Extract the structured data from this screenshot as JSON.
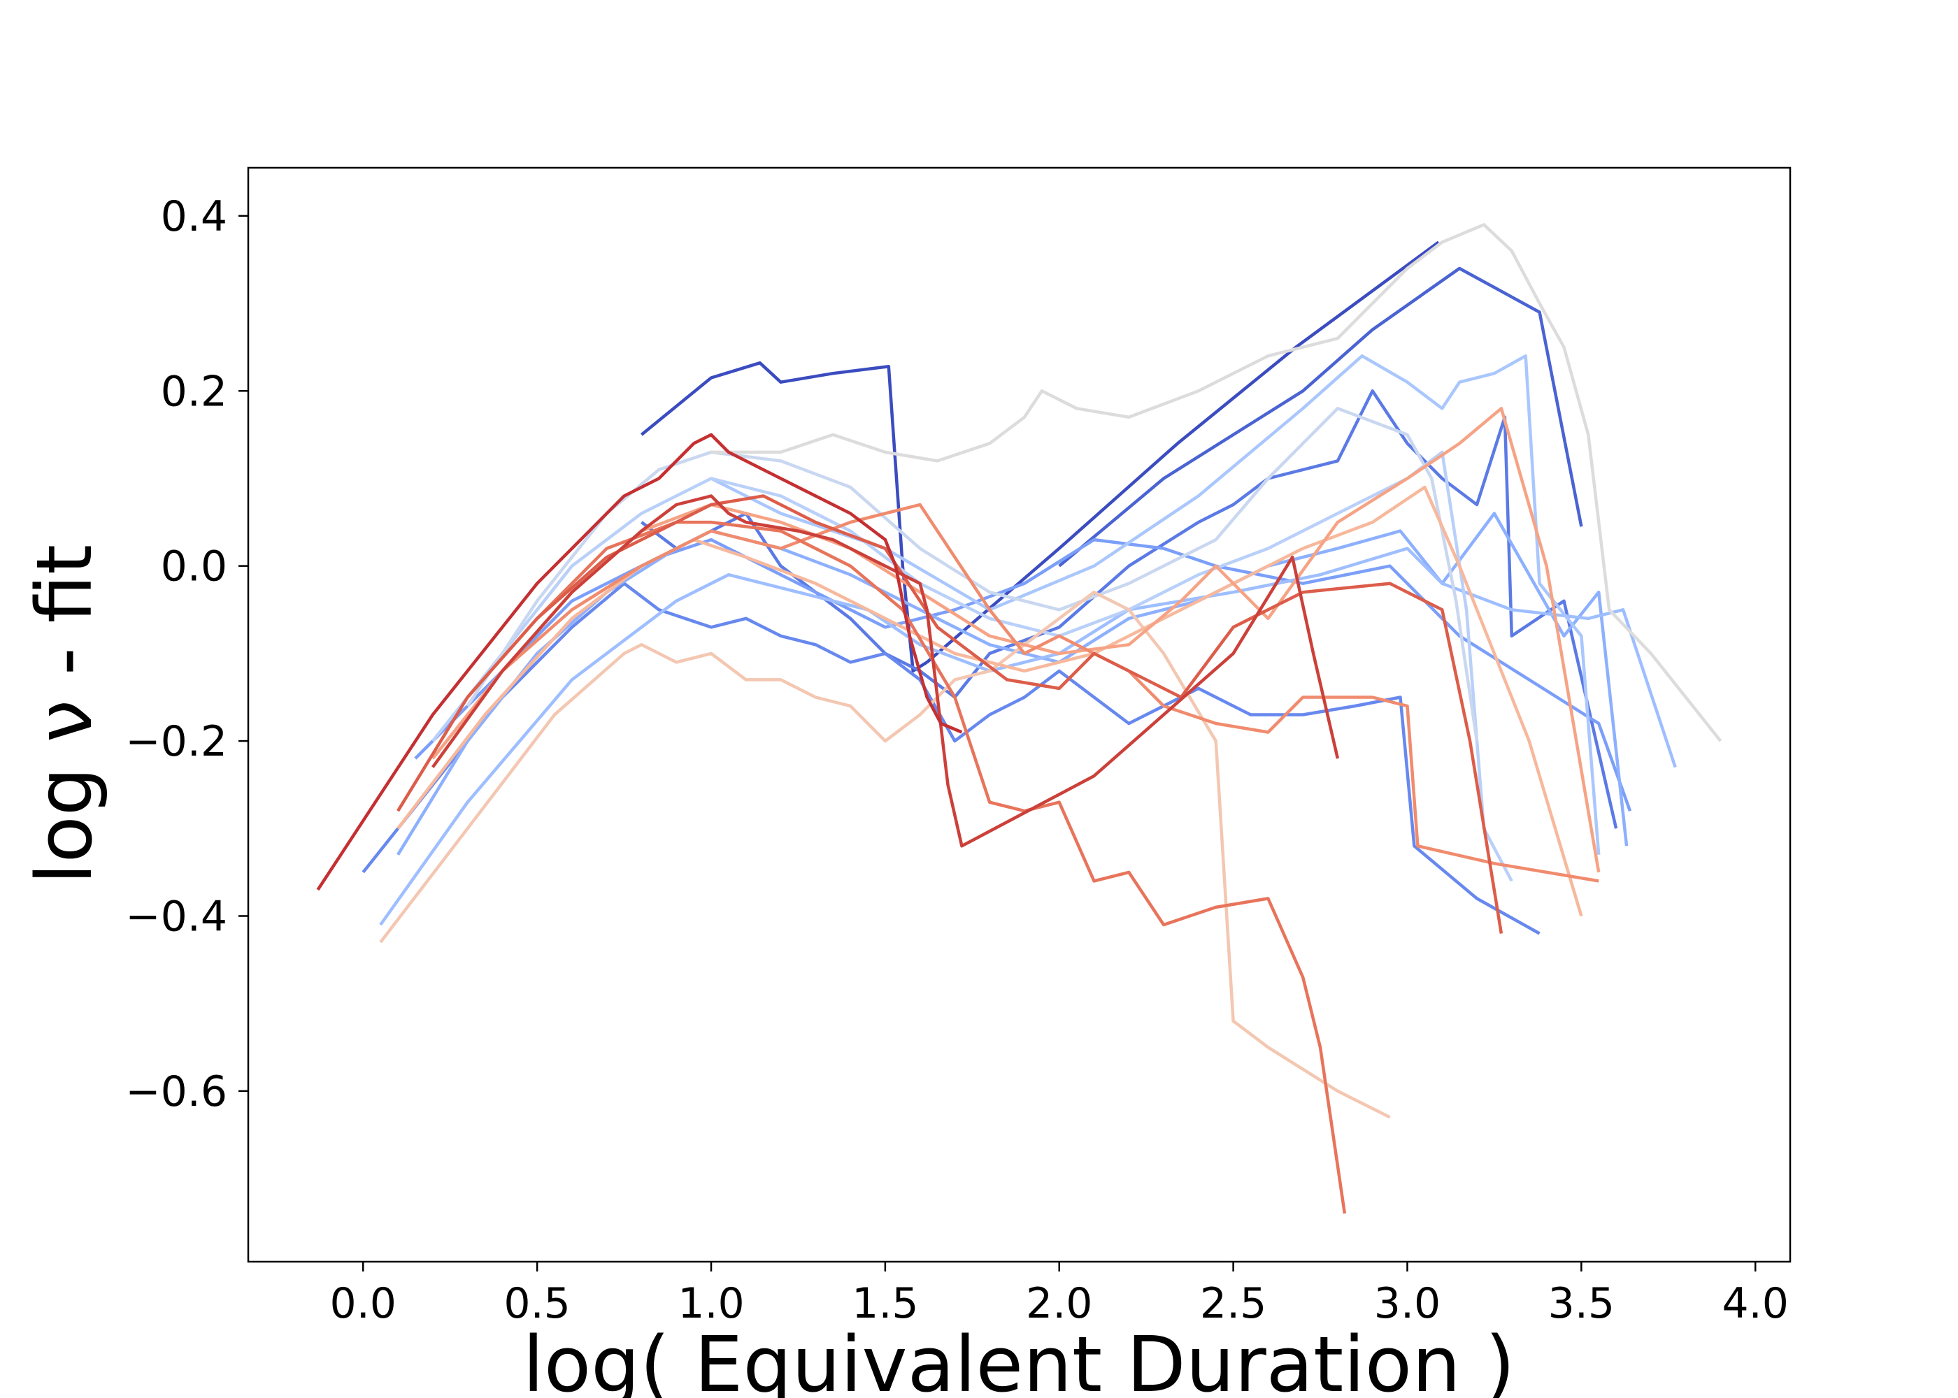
{
  "chart_data": {
    "type": "line",
    "title": "",
    "xlabel": "log( Equivalent Duration )",
    "ylabel": "log  ν  - fit",
    "xlim": [
      -0.33,
      4.1
    ],
    "ylim": [
      -0.795,
      0.455
    ],
    "xticks": [
      0.0,
      0.5,
      1.0,
      1.5,
      2.0,
      2.5,
      3.0,
      3.5,
      4.0
    ],
    "xtick_labels": [
      "0.0",
      "0.5",
      "1.0",
      "1.5",
      "2.0",
      "2.5",
      "3.0",
      "3.5",
      "4.0"
    ],
    "yticks": [
      0.4,
      0.2,
      0.0,
      -0.2,
      -0.4,
      -0.6
    ],
    "ytick_labels": [
      "0.4",
      "0.2",
      "0.0",
      "−0.2",
      "−0.4",
      "−0.6"
    ],
    "grid": false,
    "legend": "none",
    "series": [
      {
        "color": "#3b4cc0",
        "x": [
          0.8,
          1.0,
          1.14,
          1.2,
          1.35,
          1.51,
          1.55,
          1.58,
          1.62
        ],
        "y": [
          0.15,
          0.215,
          0.232,
          0.21,
          0.22,
          0.228,
          0.0,
          -0.12,
          -0.11
        ]
      },
      {
        "color": "#3b4cc0",
        "x": [
          1.62,
          2.0,
          2.34,
          2.68,
          3.09
        ],
        "y": [
          -0.11,
          0.02,
          0.14,
          0.25,
          0.37
        ]
      },
      {
        "color": "#4a63d3",
        "x": [
          2.0,
          2.3,
          2.7,
          2.9,
          3.15,
          3.38,
          3.5
        ],
        "y": [
          0.0,
          0.1,
          0.2,
          0.27,
          0.34,
          0.29,
          0.045
        ]
      },
      {
        "color": "#5b7ae5",
        "x": [
          0.8,
          0.9,
          1.0,
          1.1,
          1.2,
          1.3,
          1.4,
          1.5,
          1.6,
          1.7,
          1.8,
          2.0,
          2.2,
          2.4,
          2.5,
          2.6,
          2.8,
          2.9,
          3.0,
          3.1,
          3.2,
          3.28,
          3.3,
          3.45,
          3.6
        ],
        "y": [
          0.05,
          0.02,
          0.04,
          0.06,
          0.0,
          -0.03,
          -0.06,
          -0.1,
          -0.12,
          -0.15,
          -0.1,
          -0.07,
          0.0,
          0.05,
          0.07,
          0.1,
          0.12,
          0.2,
          0.14,
          0.1,
          0.07,
          0.17,
          -0.08,
          -0.04,
          -0.3
        ]
      },
      {
        "color": "#6788ee",
        "x": [
          0.0,
          0.2,
          0.4,
          0.6,
          0.75,
          0.85,
          1.0,
          1.1,
          1.2,
          1.3,
          1.4,
          1.5,
          1.6,
          1.7,
          1.8,
          1.9,
          2.0,
          2.2,
          2.4,
          2.55,
          2.7,
          2.85,
          2.98,
          3.02,
          3.2,
          3.38
        ],
        "y": [
          -0.35,
          -0.25,
          -0.15,
          -0.07,
          -0.02,
          -0.05,
          -0.07,
          -0.06,
          -0.08,
          -0.09,
          -0.11,
          -0.1,
          -0.13,
          -0.2,
          -0.17,
          -0.15,
          -0.12,
          -0.18,
          -0.14,
          -0.17,
          -0.17,
          -0.16,
          -0.15,
          -0.32,
          -0.38,
          -0.42
        ]
      },
      {
        "color": "#7b9ff9",
        "x": [
          0.15,
          0.4,
          0.6,
          0.85,
          1.0,
          1.2,
          1.35,
          1.5,
          1.7,
          1.9,
          2.1,
          2.3,
          2.45,
          2.7,
          2.95,
          3.15,
          3.35,
          3.55,
          3.64
        ],
        "y": [
          -0.22,
          -0.12,
          -0.04,
          0.01,
          0.03,
          -0.01,
          -0.04,
          -0.07,
          -0.05,
          -0.02,
          0.03,
          0.02,
          0.0,
          -0.02,
          0.0,
          -0.08,
          -0.13,
          -0.18,
          -0.28
        ]
      },
      {
        "color": "#8db0fe",
        "x": [
          0.1,
          0.3,
          0.5,
          0.7,
          0.9,
          1.0,
          1.2,
          1.4,
          1.6,
          1.8,
          2.0,
          2.2,
          2.4,
          2.6,
          2.8,
          2.98,
          3.1,
          3.25,
          3.45,
          3.55,
          3.63
        ],
        "y": [
          -0.33,
          -0.2,
          -0.1,
          -0.03,
          0.02,
          0.04,
          0.02,
          -0.01,
          -0.05,
          -0.09,
          -0.11,
          -0.06,
          -0.04,
          0.0,
          0.02,
          0.04,
          -0.02,
          0.06,
          -0.08,
          -0.03,
          -0.32
        ]
      },
      {
        "color": "#9ebeff",
        "x": [
          0.05,
          0.3,
          0.6,
          0.9,
          1.05,
          1.25,
          1.45,
          1.6,
          1.8,
          2.0,
          2.2,
          2.5,
          2.75,
          3.0,
          3.1,
          3.3,
          3.52,
          3.62,
          3.77
        ],
        "y": [
          -0.41,
          -0.27,
          -0.13,
          -0.04,
          -0.01,
          -0.03,
          -0.05,
          -0.09,
          -0.12,
          -0.1,
          -0.05,
          -0.03,
          -0.01,
          0.02,
          -0.02,
          -0.05,
          -0.06,
          -0.05,
          -0.23
        ]
      },
      {
        "color": "#aac7fd",
        "x": [
          1.0,
          1.2,
          1.5,
          1.8,
          2.1,
          2.4,
          2.7,
          2.87,
          3.0,
          3.1,
          3.15,
          3.25,
          3.34,
          3.38,
          3.5,
          3.55
        ],
        "y": [
          0.1,
          0.06,
          0.02,
          -0.05,
          0.0,
          0.08,
          0.18,
          0.24,
          0.21,
          0.18,
          0.21,
          0.22,
          0.24,
          -0.02,
          -0.08,
          -0.33
        ]
      },
      {
        "color": "#b9d0f9",
        "x": [
          0.2,
          0.4,
          0.6,
          0.8,
          1.0,
          1.2,
          1.4,
          1.6,
          1.8,
          2.0,
          2.2,
          2.4,
          2.6,
          2.8,
          3.0,
          3.1,
          3.17,
          3.22,
          3.3
        ],
        "y": [
          -0.2,
          -0.1,
          0.0,
          0.06,
          0.1,
          0.08,
          0.04,
          -0.02,
          -0.06,
          -0.08,
          -0.05,
          -0.01,
          0.02,
          0.06,
          0.1,
          0.13,
          -0.05,
          -0.3,
          -0.36
        ]
      },
      {
        "color": "#c9d7f0",
        "x": [
          0.3,
          0.5,
          0.7,
          0.85,
          1.0,
          1.2,
          1.4,
          1.6,
          1.8,
          2.0,
          2.2,
          2.45,
          2.6,
          2.8,
          3.0,
          3.07,
          3.14,
          3.2
        ],
        "y": [
          -0.16,
          -0.04,
          0.06,
          0.11,
          0.13,
          0.12,
          0.09,
          0.02,
          -0.03,
          -0.05,
          -0.02,
          0.03,
          0.1,
          0.18,
          0.15,
          0.1,
          -0.04,
          -0.2
        ]
      },
      {
        "color": "#dddcdc",
        "x": [
          1.0,
          1.2,
          1.35,
          1.5,
          1.65,
          1.8,
          1.9,
          1.95,
          2.05,
          2.2,
          2.4,
          2.6,
          2.8,
          3.0,
          3.1,
          3.22,
          3.3,
          3.38,
          3.45,
          3.52,
          3.58,
          3.7,
          3.9
        ],
        "y": [
          0.13,
          0.13,
          0.15,
          0.13,
          0.12,
          0.14,
          0.17,
          0.2,
          0.18,
          0.17,
          0.2,
          0.24,
          0.26,
          0.34,
          0.37,
          0.39,
          0.36,
          0.3,
          0.25,
          0.15,
          -0.05,
          -0.1,
          -0.2
        ]
      },
      {
        "color": "#f3c7b1",
        "x": [
          0.05,
          0.3,
          0.55,
          0.75,
          0.8,
          0.9,
          1.0,
          1.1,
          1.2,
          1.3,
          1.4,
          1.5,
          1.6,
          1.7,
          1.8,
          1.9,
          2.0,
          2.1,
          2.2,
          2.3,
          2.45,
          2.5,
          2.6,
          2.8,
          2.95
        ],
        "y": [
          -0.43,
          -0.3,
          -0.17,
          -0.1,
          -0.09,
          -0.11,
          -0.1,
          -0.13,
          -0.13,
          -0.15,
          -0.16,
          -0.2,
          -0.17,
          -0.13,
          -0.12,
          -0.09,
          -0.06,
          -0.03,
          -0.05,
          -0.1,
          -0.2,
          -0.52,
          -0.55,
          -0.6,
          -0.63
        ]
      },
      {
        "color": "#f7b89c",
        "x": [
          0.1,
          0.35,
          0.6,
          0.8,
          0.95,
          1.1,
          1.3,
          1.5,
          1.7,
          1.9,
          2.1,
          2.3,
          2.5,
          2.7,
          2.9,
          3.05,
          3.15,
          3.25,
          3.35,
          3.5
        ],
        "y": [
          -0.3,
          -0.17,
          -0.06,
          0.0,
          0.03,
          0.01,
          -0.02,
          -0.06,
          -0.1,
          -0.12,
          -0.1,
          -0.06,
          -0.02,
          0.02,
          0.05,
          0.09,
          0.0,
          -0.1,
          -0.2,
          -0.4
        ]
      },
      {
        "color": "#f6a385",
        "x": [
          0.2,
          0.4,
          0.6,
          0.8,
          1.0,
          1.2,
          1.4,
          1.6,
          1.8,
          2.0,
          2.2,
          2.35,
          2.45,
          2.6,
          2.8,
          3.0,
          3.15,
          3.27,
          3.4,
          3.55
        ],
        "y": [
          -0.22,
          -0.12,
          -0.03,
          0.04,
          0.07,
          0.05,
          0.02,
          -0.03,
          -0.08,
          -0.1,
          -0.09,
          -0.04,
          0.0,
          -0.06,
          0.05,
          0.1,
          0.14,
          0.18,
          0.0,
          -0.35
        ]
      },
      {
        "color": "#f08b6e",
        "x": [
          0.4,
          0.6,
          0.8,
          1.0,
          1.2,
          1.4,
          1.6,
          1.8,
          1.9,
          2.0,
          2.2,
          2.3,
          2.45,
          2.6,
          2.7,
          2.8,
          2.9,
          3.0,
          3.03,
          3.25,
          3.55
        ],
        "y": [
          -0.12,
          -0.05,
          0.0,
          0.04,
          0.02,
          0.05,
          0.07,
          -0.05,
          -0.1,
          -0.08,
          -0.12,
          -0.16,
          -0.18,
          -0.19,
          -0.15,
          -0.15,
          -0.15,
          -0.16,
          -0.32,
          -0.34,
          -0.36
        ]
      },
      {
        "color": "#e7745b",
        "x": [
          0.3,
          0.5,
          0.7,
          0.9,
          1.0,
          1.2,
          1.4,
          1.55,
          1.7,
          1.8,
          1.9,
          2.0,
          2.1,
          2.2,
          2.3,
          2.45,
          2.6,
          2.7,
          2.75,
          2.82
        ],
        "y": [
          -0.15,
          -0.06,
          0.02,
          0.05,
          0.05,
          0.04,
          0.0,
          -0.05,
          -0.15,
          -0.27,
          -0.28,
          -0.27,
          -0.36,
          -0.35,
          -0.41,
          -0.39,
          -0.38,
          -0.47,
          -0.55,
          -0.74
        ]
      },
      {
        "color": "#dc5d4a",
        "x": [
          0.1,
          0.3,
          0.5,
          0.7,
          0.85,
          1.0,
          1.15,
          1.3,
          1.5,
          1.65,
          1.85,
          2.0,
          2.1,
          2.2,
          2.35,
          2.5,
          2.7,
          2.95,
          3.1,
          3.18,
          3.27
        ],
        "y": [
          -0.28,
          -0.15,
          -0.06,
          0.01,
          0.04,
          0.07,
          0.08,
          0.05,
          0.02,
          -0.07,
          -0.13,
          -0.14,
          -0.1,
          -0.12,
          -0.15,
          -0.07,
          -0.03,
          -0.02,
          -0.05,
          -0.2,
          -0.42
        ]
      },
      {
        "color": "#cc403a",
        "x": [
          0.2,
          0.4,
          0.6,
          0.8,
          0.9,
          1.0,
          1.05,
          1.1,
          1.25,
          1.35,
          1.5,
          1.6,
          1.62,
          1.68,
          1.72,
          2.1,
          2.5,
          2.67,
          2.73,
          2.8
        ],
        "y": [
          -0.23,
          -0.12,
          -0.03,
          0.04,
          0.07,
          0.08,
          0.06,
          0.05,
          0.04,
          0.03,
          0.0,
          -0.02,
          -0.05,
          -0.25,
          -0.32,
          -0.24,
          -0.1,
          0.01,
          -0.1,
          -0.22
        ]
      },
      {
        "color": "#c43032",
        "x": [
          -0.13,
          0.2,
          0.5,
          0.75,
          0.85,
          0.95,
          1.0,
          1.05,
          1.2,
          1.4,
          1.5,
          1.53,
          1.57,
          1.62,
          1.66,
          1.72
        ],
        "y": [
          -0.37,
          -0.17,
          -0.02,
          0.08,
          0.1,
          0.14,
          0.15,
          0.13,
          0.1,
          0.06,
          0.03,
          0.0,
          -0.08,
          -0.15,
          -0.18,
          -0.19
        ]
      }
    ]
  }
}
